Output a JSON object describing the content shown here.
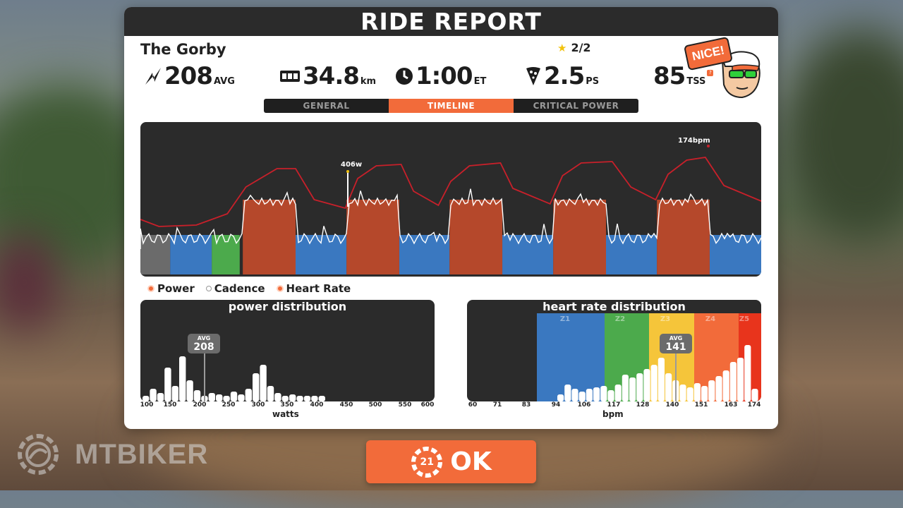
{
  "header": {
    "title": "RIDE REPORT"
  },
  "rider": {
    "name": "The Gorby"
  },
  "stars": {
    "value": "2/2"
  },
  "stats": {
    "power": {
      "value": "208",
      "unit": "AVG"
    },
    "distance": {
      "value": "34.8",
      "unit": "km"
    },
    "time": {
      "value": "1:00",
      "unit": "ET"
    },
    "pizza": {
      "value": "2.5",
      "unit": "PS"
    },
    "tss": {
      "value": "85",
      "unit": "TSS",
      "help": "?"
    }
  },
  "badge": {
    "text": "NICE!"
  },
  "tabs": [
    {
      "label": "GENERAL",
      "active": false
    },
    {
      "label": "TIMELINE",
      "active": true
    },
    {
      "label": "CRITICAL POWER",
      "active": false
    }
  ],
  "timeline": {
    "annotations": {
      "peak_power": "406w",
      "peak_hr": "174bpm"
    },
    "intervals": [
      {
        "start": 0.165,
        "end": 0.25
      },
      {
        "start": 0.332,
        "end": 0.417
      },
      {
        "start": 0.498,
        "end": 0.583
      },
      {
        "start": 0.665,
        "end": 0.75
      },
      {
        "start": 0.832,
        "end": 0.917
      }
    ]
  },
  "legend": [
    {
      "label": "Power",
      "color": "#f26b3a"
    },
    {
      "label": "Cadence",
      "color": "#ffffff"
    },
    {
      "label": "Heart Rate",
      "color": "#f26b3a"
    }
  ],
  "power_distribution": {
    "title": "power distribution",
    "avg_label": "AVG",
    "avg_value": "208",
    "ticks": [
      "100",
      "150",
      "200",
      "250",
      "300",
      "350",
      "400",
      "450",
      "500",
      "550",
      "600"
    ],
    "axis_title": "watts"
  },
  "hr_distribution": {
    "title": "heart rate distribution",
    "avg_label": "AVG",
    "avg_value": "141",
    "zones": [
      "Z1",
      "Z2",
      "Z3",
      "Z4",
      "Z5"
    ],
    "ticks": [
      "60",
      "71",
      "83",
      "94",
      "106",
      "117",
      "128",
      "140",
      "151",
      "163",
      "174"
    ],
    "axis_title": "bpm"
  },
  "ok_button": {
    "label": "OK",
    "countdown": "21"
  },
  "watermark": {
    "text": "MTBIKER"
  },
  "colors": {
    "accent": "#f26b3a",
    "panel_dark": "#2b2b2b",
    "zone_blue": "#3a78c0",
    "zone_green": "#4caa4c",
    "zone_yellow": "#f5c53a",
    "zone_orange": "#f26b3a",
    "zone_red": "#e8341c",
    "interval_red": "#b5482b",
    "hr_line": "#c8202a"
  }
}
